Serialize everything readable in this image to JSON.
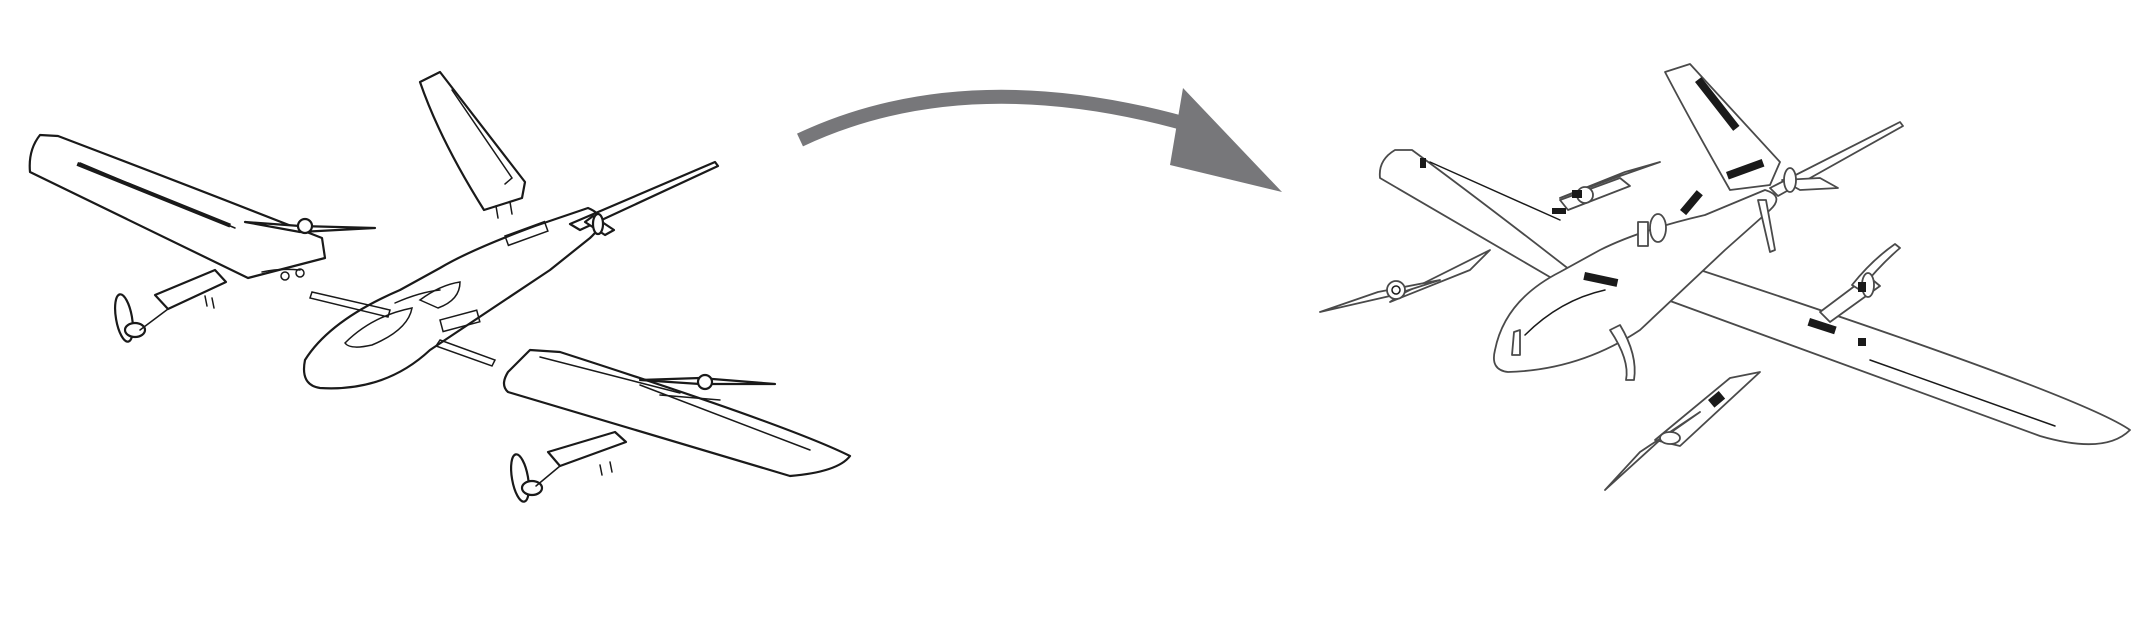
{
  "diagram": {
    "left_panel": "exploded-airframe",
    "arrow": "assembly-arrow",
    "right_panel": "assembled-airframe",
    "colors": {
      "background": "#ffffff",
      "line": "#1a1a1a",
      "arrow": "#77777a"
    },
    "icons": [
      "disassembled-vtol-drone",
      "curved-arrow",
      "assembled-vtol-drone"
    ]
  }
}
